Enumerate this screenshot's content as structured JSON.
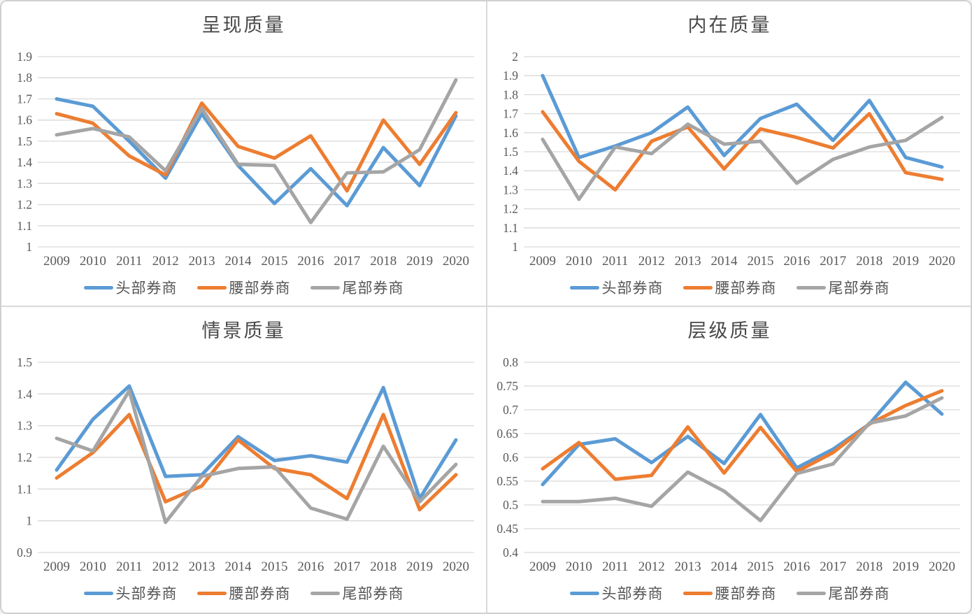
{
  "colors": {
    "blue": "#5B9BD5",
    "orange": "#ED7D31",
    "gray": "#A5A5A5",
    "grid": "#D9D9D9",
    "text": "#595959",
    "title": "#484848",
    "panel_divider": "#D9D9D9",
    "frame_border": "#D0D0D0"
  },
  "legend_labels": [
    "头部券商",
    "腰部券商",
    "尾部券商"
  ],
  "chart_data": [
    {
      "type": "line",
      "title": "呈现质量",
      "categories": [
        "2009",
        "2010",
        "2011",
        "2012",
        "2013",
        "2014",
        "2015",
        "2016",
        "2017",
        "2018",
        "2019",
        "2020"
      ],
      "ylim": [
        1,
        1.9
      ],
      "ytick_step": 0.1,
      "grid": true,
      "legend_position": "bottom",
      "series": [
        {
          "name": "头部券商",
          "color": "#5B9BD5",
          "values": [
            1.7,
            1.665,
            1.5,
            1.325,
            1.63,
            1.385,
            1.205,
            1.37,
            1.195,
            1.47,
            1.29,
            1.62
          ]
        },
        {
          "name": "腰部券商",
          "color": "#ED7D31",
          "values": [
            1.63,
            1.585,
            1.43,
            1.34,
            1.68,
            1.475,
            1.42,
            1.525,
            1.265,
            1.6,
            1.39,
            1.635
          ]
        },
        {
          "name": "尾部券商",
          "color": "#A5A5A5",
          "values": [
            1.53,
            1.56,
            1.52,
            1.36,
            1.655,
            1.39,
            1.385,
            1.115,
            1.35,
            1.355,
            1.46,
            1.79
          ]
        }
      ]
    },
    {
      "type": "line",
      "title": "内在质量",
      "categories": [
        "2009",
        "2010",
        "2011",
        "2012",
        "2013",
        "2014",
        "2015",
        "2016",
        "2017",
        "2018",
        "2019",
        "2020"
      ],
      "ylim": [
        1,
        2
      ],
      "ytick_step": 0.1,
      "grid": true,
      "legend_position": "bottom",
      "series": [
        {
          "name": "头部券商",
          "color": "#5B9BD5",
          "values": [
            1.9,
            1.47,
            1.53,
            1.6,
            1.735,
            1.48,
            1.675,
            1.75,
            1.56,
            1.77,
            1.47,
            1.42
          ]
        },
        {
          "name": "腰部券商",
          "color": "#ED7D31",
          "values": [
            1.71,
            1.45,
            1.3,
            1.555,
            1.63,
            1.41,
            1.62,
            1.575,
            1.52,
            1.7,
            1.39,
            1.355
          ]
        },
        {
          "name": "尾部券商",
          "color": "#A5A5A5",
          "values": [
            1.565,
            1.25,
            1.525,
            1.49,
            1.645,
            1.54,
            1.555,
            1.335,
            1.46,
            1.525,
            1.56,
            1.68
          ]
        }
      ]
    },
    {
      "type": "line",
      "title": "情景质量",
      "categories": [
        "2009",
        "2010",
        "2011",
        "2012",
        "2013",
        "2014",
        "2015",
        "2016",
        "2017",
        "2018",
        "2019",
        "2020"
      ],
      "ylim": [
        0.9,
        1.5
      ],
      "ytick_step": 0.1,
      "grid": true,
      "legend_position": "bottom",
      "series": [
        {
          "name": "头部券商",
          "color": "#5B9BD5",
          "values": [
            1.16,
            1.32,
            1.425,
            1.14,
            1.145,
            1.265,
            1.19,
            1.205,
            1.185,
            1.42,
            1.07,
            1.255
          ]
        },
        {
          "name": "腰部券商",
          "color": "#ED7D31",
          "values": [
            1.135,
            1.215,
            1.335,
            1.06,
            1.11,
            1.255,
            1.165,
            1.145,
            1.07,
            1.335,
            1.035,
            1.145
          ]
        },
        {
          "name": "尾部券商",
          "color": "#A5A5A5",
          "values": [
            1.26,
            1.22,
            1.41,
            0.995,
            1.14,
            1.165,
            1.17,
            1.04,
            1.005,
            1.235,
            1.06,
            1.178
          ]
        }
      ]
    },
    {
      "type": "line",
      "title": "层级质量",
      "categories": [
        "2009",
        "2010",
        "2011",
        "2012",
        "2013",
        "2014",
        "2015",
        "2016",
        "2017",
        "2018",
        "2019",
        "2020"
      ],
      "ylim": [
        0.4,
        0.8
      ],
      "ytick_step": 0.05,
      "grid": true,
      "legend_position": "bottom",
      "series": [
        {
          "name": "头部券商",
          "color": "#5B9BD5",
          "values": [
            0.543,
            0.627,
            0.639,
            0.589,
            0.644,
            0.587,
            0.69,
            0.578,
            0.617,
            0.67,
            0.758,
            0.691
          ]
        },
        {
          "name": "腰部券商",
          "color": "#ED7D31",
          "values": [
            0.576,
            0.631,
            0.554,
            0.562,
            0.664,
            0.567,
            0.663,
            0.57,
            0.61,
            0.67,
            0.709,
            0.74
          ]
        },
        {
          "name": "尾部券商",
          "color": "#A5A5A5",
          "values": [
            0.507,
            0.507,
            0.514,
            0.497,
            0.569,
            0.529,
            0.467,
            0.566,
            0.586,
            0.672,
            0.687,
            0.725
          ]
        }
      ]
    }
  ]
}
